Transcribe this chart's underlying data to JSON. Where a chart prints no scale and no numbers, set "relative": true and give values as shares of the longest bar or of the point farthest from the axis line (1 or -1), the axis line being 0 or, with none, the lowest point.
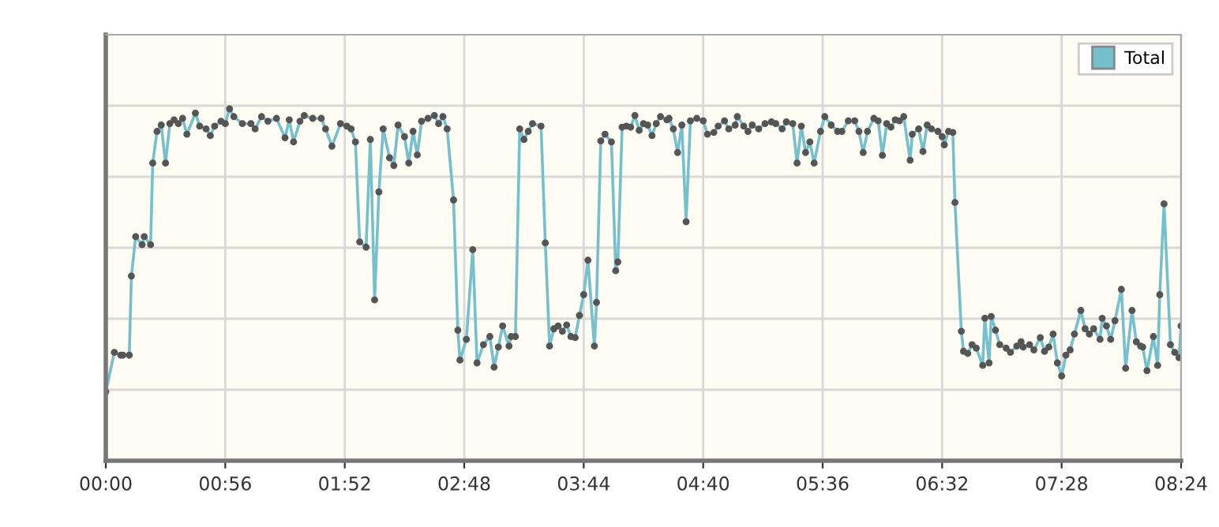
{
  "chart_data": {
    "type": "line",
    "relative": true,
    "xlim": [
      0,
      504
    ],
    "xticks": [
      {
        "value": 0,
        "label": "00:00"
      },
      {
        "value": 56,
        "label": "00:56"
      },
      {
        "value": 112,
        "label": "01:52"
      },
      {
        "value": 168,
        "label": "02:48"
      },
      {
        "value": 224,
        "label": "03:44"
      },
      {
        "value": 280,
        "label": "04:40"
      },
      {
        "value": 336,
        "label": "05:36"
      },
      {
        "value": 392,
        "label": "06:32"
      },
      {
        "value": 448,
        "label": "07:28"
      },
      {
        "value": 504,
        "label": "08:24"
      }
    ],
    "x": [
      0,
      4,
      7,
      8,
      11,
      12,
      14,
      17,
      18,
      21,
      22,
      24,
      26,
      28,
      30,
      32,
      34,
      36,
      38,
      42,
      44,
      47,
      49,
      51,
      54,
      56,
      58,
      60,
      64,
      68,
      70,
      73,
      76,
      80,
      84,
      86,
      88,
      91,
      93,
      97,
      101,
      103,
      106,
      110,
      113,
      115,
      117,
      119,
      122,
      124,
      126,
      128,
      130,
      133,
      135,
      137,
      140,
      142,
      144,
      146,
      148,
      151,
      154,
      156,
      158,
      160,
      163,
      165,
      166,
      169,
      172,
      174,
      177,
      180,
      182,
      184,
      186,
      189,
      190,
      192,
      194,
      196,
      198,
      200,
      204,
      206,
      208,
      210,
      212,
      214,
      216,
      218,
      220,
      222,
      224,
      226,
      229,
      230,
      232,
      234,
      237,
      239,
      240,
      242,
      244,
      246,
      248,
      250,
      252,
      254,
      256,
      258,
      260,
      263,
      264,
      266,
      268,
      270,
      272,
      274,
      277,
      280,
      282,
      285,
      287,
      290,
      292,
      295,
      296,
      299,
      301,
      303,
      306,
      309,
      312,
      314,
      317,
      319,
      322,
      324,
      326,
      328,
      330,
      332,
      335,
      337,
      340,
      343,
      345,
      348,
      351,
      353,
      355,
      357,
      360,
      362,
      364,
      366,
      368,
      370,
      372,
      374,
      377,
      378,
      381,
      383,
      385,
      387,
      390,
      392,
      393,
      395,
      397,
      398,
      401,
      402,
      404,
      406,
      408,
      411,
      412,
      414,
      415,
      417,
      419,
      422,
      424,
      427,
      429,
      430,
      433,
      435,
      438,
      440,
      442,
      444,
      446,
      448,
      450,
      452,
      454,
      457,
      459,
      461,
      463,
      466,
      467,
      469,
      471,
      473,
      476,
      478,
      481,
      483,
      485,
      486,
      488,
      491,
      493,
      494,
      496,
      499,
      501,
      503,
      504
    ],
    "series": [
      {
        "name": "Total",
        "color": "#74c0cc",
        "values": [
          0.196,
          0.308,
          0.3,
          0.3,
          0.3,
          0.525,
          0.637,
          0.614,
          0.637,
          0.614,
          0.846,
          0.936,
          0.954,
          0.846,
          0.958,
          0.969,
          0.958,
          0.973,
          0.928,
          0.988,
          0.951,
          0.943,
          0.924,
          0.951,
          0.965,
          0.958,
          1.0,
          0.978,
          0.958,
          0.958,
          0.943,
          0.978,
          0.965,
          0.973,
          0.918,
          0.969,
          0.906,
          0.965,
          0.981,
          0.973,
          0.973,
          0.943,
          0.894,
          0.958,
          0.951,
          0.943,
          0.906,
          0.622,
          0.607,
          0.913,
          0.457,
          0.764,
          0.943,
          0.861,
          0.839,
          0.954,
          0.921,
          0.846,
          0.936,
          0.869,
          0.965,
          0.973,
          0.981,
          0.958,
          0.978,
          0.943,
          0.741,
          0.371,
          0.286,
          0.345,
          0.6,
          0.278,
          0.33,
          0.353,
          0.266,
          0.323,
          0.383,
          0.326,
          0.353,
          0.353,
          0.943,
          0.913,
          0.936,
          0.958,
          0.951,
          0.619,
          0.326,
          0.375,
          0.383,
          0.368,
          0.386,
          0.353,
          0.35,
          0.413,
          0.472,
          0.57,
          0.326,
          0.45,
          0.909,
          0.928,
          0.906,
          0.54,
          0.565,
          0.948,
          0.951,
          0.948,
          0.981,
          0.939,
          0.958,
          0.954,
          0.924,
          0.958,
          0.978,
          0.969,
          0.973,
          0.943,
          0.876,
          0.954,
          0.679,
          0.966,
          0.973,
          0.966,
          0.928,
          0.933,
          0.951,
          0.966,
          0.943,
          0.954,
          0.978,
          0.951,
          0.936,
          0.954,
          0.943,
          0.958,
          0.963,
          0.958,
          0.943,
          0.963,
          0.958,
          0.846,
          0.951,
          0.876,
          0.906,
          0.846,
          0.936,
          0.978,
          0.954,
          0.936,
          0.936,
          0.966,
          0.966,
          0.936,
          0.876,
          0.936,
          0.973,
          0.966,
          0.868,
          0.958,
          0.948,
          0.969,
          0.966,
          0.978,
          0.854,
          0.928,
          0.943,
          0.879,
          0.954,
          0.943,
          0.936,
          0.921,
          0.898,
          0.936,
          0.933,
          0.734,
          0.368,
          0.311,
          0.305,
          0.33,
          0.32,
          0.271,
          0.405,
          0.278,
          0.41,
          0.371,
          0.33,
          0.32,
          0.308,
          0.326,
          0.338,
          0.323,
          0.33,
          0.315,
          0.35,
          0.311,
          0.323,
          0.36,
          0.278,
          0.241,
          0.3,
          0.315,
          0.36,
          0.427,
          0.375,
          0.36,
          0.375,
          0.345,
          0.405,
          0.383,
          0.345,
          0.398,
          0.487,
          0.263,
          0.427,
          0.338,
          0.326,
          0.323,
          0.256,
          0.353,
          0.271,
          0.472,
          0.73,
          0.33,
          0.308,
          0.293,
          0.383
        ]
      }
    ],
    "marker": "circle",
    "line_style": "solid",
    "grid": true,
    "legend": "top right",
    "tick_labels": "x"
  }
}
